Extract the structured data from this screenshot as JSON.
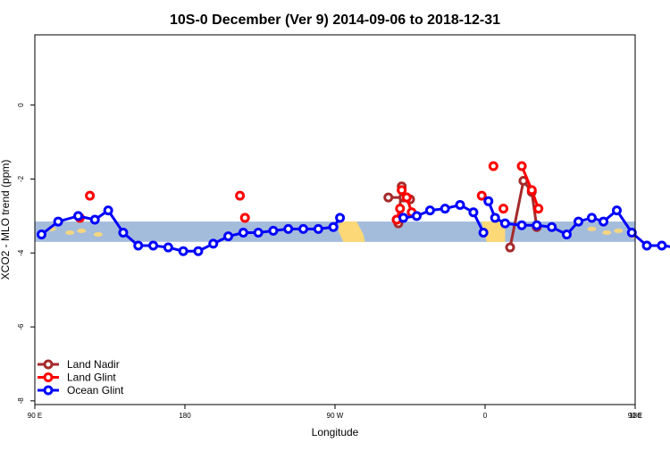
{
  "chart_data": {
    "type": "line",
    "title": "10S-0 December (Ver 9)   2014-09-06 to 2018-12-31",
    "xlabel": "Longitude",
    "ylabel": "XCO2 - MLO trend (ppm)",
    "xlim": [
      90,
      450
    ],
    "ylim": [
      -8.1,
      1.9
    ],
    "x_ticks": [
      {
        "value": 90,
        "label": "90 E"
      },
      {
        "value": 180,
        "label": "180"
      },
      {
        "value": 270,
        "label": "90 W"
      },
      {
        "value": 360,
        "label": "0"
      },
      {
        "value": 450,
        "label": "90 E"
      },
      {
        "value": 540,
        "label": "180"
      }
    ],
    "y_ticks": [
      {
        "value": 0,
        "label": "0"
      },
      {
        "value": -2,
        "label": "-2"
      },
      {
        "value": -4,
        "label": "-4"
      },
      {
        "value": -6,
        "label": "-6"
      },
      {
        "value": -8,
        "label": "-8"
      }
    ],
    "latitude_band": {
      "from": -3.15,
      "to": -3.7,
      "color": "#a4bcdc",
      "land_color": "#fdd876"
    },
    "legend_position": "bottom-left",
    "series": [
      {
        "name": "Land Nadir",
        "color": "#a52a2a",
        "segments": [
          [
            [
              308,
              -3.2
            ],
            [
              310,
              -2.2
            ]
          ],
          [
            [
              302,
              -2.5
            ],
            [
              311,
              -2.5
            ],
            [
              315,
              -2.55
            ]
          ],
          [
            [
              375,
              -3.85
            ],
            [
              383,
              -2.05
            ],
            [
              388,
              -2.35
            ],
            [
              391,
              -3.3
            ]
          ]
        ],
        "points": []
      },
      {
        "name": "Land Glint",
        "color": "#ff0000",
        "segments": [
          [
            [
              307,
              -3.1
            ],
            [
              309,
              -2.8
            ]
          ],
          [
            [
              313,
              -2.5
            ],
            [
              316,
              -2.9
            ]
          ],
          [
            [
              382,
              -1.65
            ],
            [
              388,
              -2.3
            ],
            [
              392,
              -2.8
            ]
          ]
        ],
        "points": [
          [
            117,
            -3.05
          ],
          [
            123,
            -2.45
          ],
          [
            216,
            -3.05
          ],
          [
            213,
            -2.45
          ],
          [
            307,
            -3.1
          ],
          [
            310,
            -2.3
          ],
          [
            313,
            -2.5
          ],
          [
            358,
            -2.45
          ],
          [
            365,
            -1.65
          ],
          [
            371,
            -2.8
          ]
        ]
      },
      {
        "name": "Ocean Glint",
        "color": "#0000ff",
        "segments": [
          [
            [
              94,
              -3.5
            ],
            [
              104,
              -3.15
            ],
            [
              116,
              -3.0
            ],
            [
              126,
              -3.1
            ],
            [
              134,
              -2.85
            ],
            [
              143,
              -3.45
            ],
            [
              152,
              -3.8
            ],
            [
              161,
              -3.8
            ],
            [
              170,
              -3.85
            ],
            [
              179,
              -3.95
            ],
            [
              188,
              -3.95
            ],
            [
              197,
              -3.75
            ],
            [
              206,
              -3.55
            ],
            [
              215,
              -3.45
            ],
            [
              224,
              -3.45
            ],
            [
              233,
              -3.4
            ],
            [
              242,
              -3.35
            ],
            [
              251,
              -3.35
            ],
            [
              260,
              -3.35
            ],
            [
              269,
              -3.3
            ],
            [
              273,
              -3.05
            ]
          ],
          [
            [
              311,
              -3.05
            ],
            [
              319,
              -3.0
            ],
            [
              327,
              -2.85
            ],
            [
              336,
              -2.8
            ],
            [
              345,
              -2.7
            ],
            [
              353,
              -2.9
            ],
            [
              359,
              -3.45
            ]
          ],
          [
            [
              362,
              -2.6
            ],
            [
              366,
              -3.05
            ],
            [
              372,
              -3.2
            ],
            [
              382,
              -3.25
            ],
            [
              391,
              -3.25
            ],
            [
              400,
              -3.3
            ],
            [
              409,
              -3.5
            ],
            [
              416,
              -3.15
            ],
            [
              424,
              -3.05
            ],
            [
              431,
              -3.15
            ],
            [
              439,
              -2.85
            ],
            [
              448,
              -3.45
            ],
            [
              457,
              -3.8
            ],
            [
              466,
              -3.8
            ],
            [
              475,
              -3.85
            ]
          ]
        ],
        "points": []
      }
    ]
  }
}
